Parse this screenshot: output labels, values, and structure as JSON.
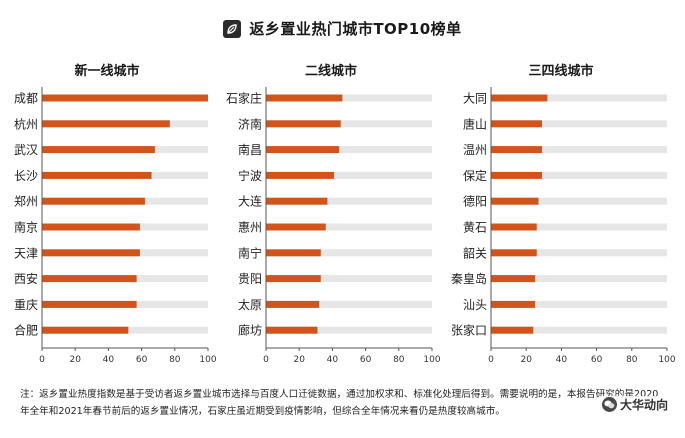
{
  "title": "返乡置业热门城市TOP10榜单",
  "footnote": "注：返乡置业热度指数是基于受访者返乡置业城市选择与百度人口迁徙数据，通过加权求和、标准化处理后得到。需要说明的是，本报告研究的是2020年全年和2021年春节前后的返乡置业情况，石家庄虽近期受到疫情影响，但综合全年情况来看仍是热度较高城市。",
  "watermark": "大华动向",
  "colors": {
    "bar": "#d3541b",
    "track": "#e6e6e6",
    "axis": "#555555"
  },
  "chart_data": [
    {
      "type": "bar",
      "orientation": "horizontal",
      "title": "新一线城市",
      "categories": [
        "成都",
        "杭州",
        "武汉",
        "长沙",
        "郑州",
        "南京",
        "天津",
        "西安",
        "重庆",
        "合肥"
      ],
      "values": [
        100,
        77,
        68,
        66,
        62,
        59,
        59,
        57,
        57,
        52
      ],
      "xlim": [
        0,
        100
      ],
      "xticks": [
        "0",
        "20",
        "40",
        "60",
        "80",
        "100"
      ]
    },
    {
      "type": "bar",
      "orientation": "horizontal",
      "title": "二线城市",
      "categories": [
        "石家庄",
        "济南",
        "南昌",
        "宁波",
        "大连",
        "惠州",
        "南宁",
        "贵阳",
        "太原",
        "廊坊"
      ],
      "values": [
        46,
        45,
        44,
        41,
        37,
        36,
        33,
        33,
        32,
        31
      ],
      "xlim": [
        0,
        100
      ],
      "xticks": [
        "0",
        "20",
        "40",
        "60",
        "80",
        "100"
      ]
    },
    {
      "type": "bar",
      "orientation": "horizontal",
      "title": "三四线城市",
      "categories": [
        "大同",
        "唐山",
        "温州",
        "保定",
        "德阳",
        "黄石",
        "韶关",
        "秦皇岛",
        "汕头",
        "张家口"
      ],
      "values": [
        32,
        29,
        29,
        29,
        27,
        26,
        26,
        25,
        25,
        24
      ],
      "xlim": [
        0,
        100
      ],
      "xticks": [
        "0",
        "20",
        "40",
        "60",
        "80",
        "100"
      ]
    }
  ]
}
